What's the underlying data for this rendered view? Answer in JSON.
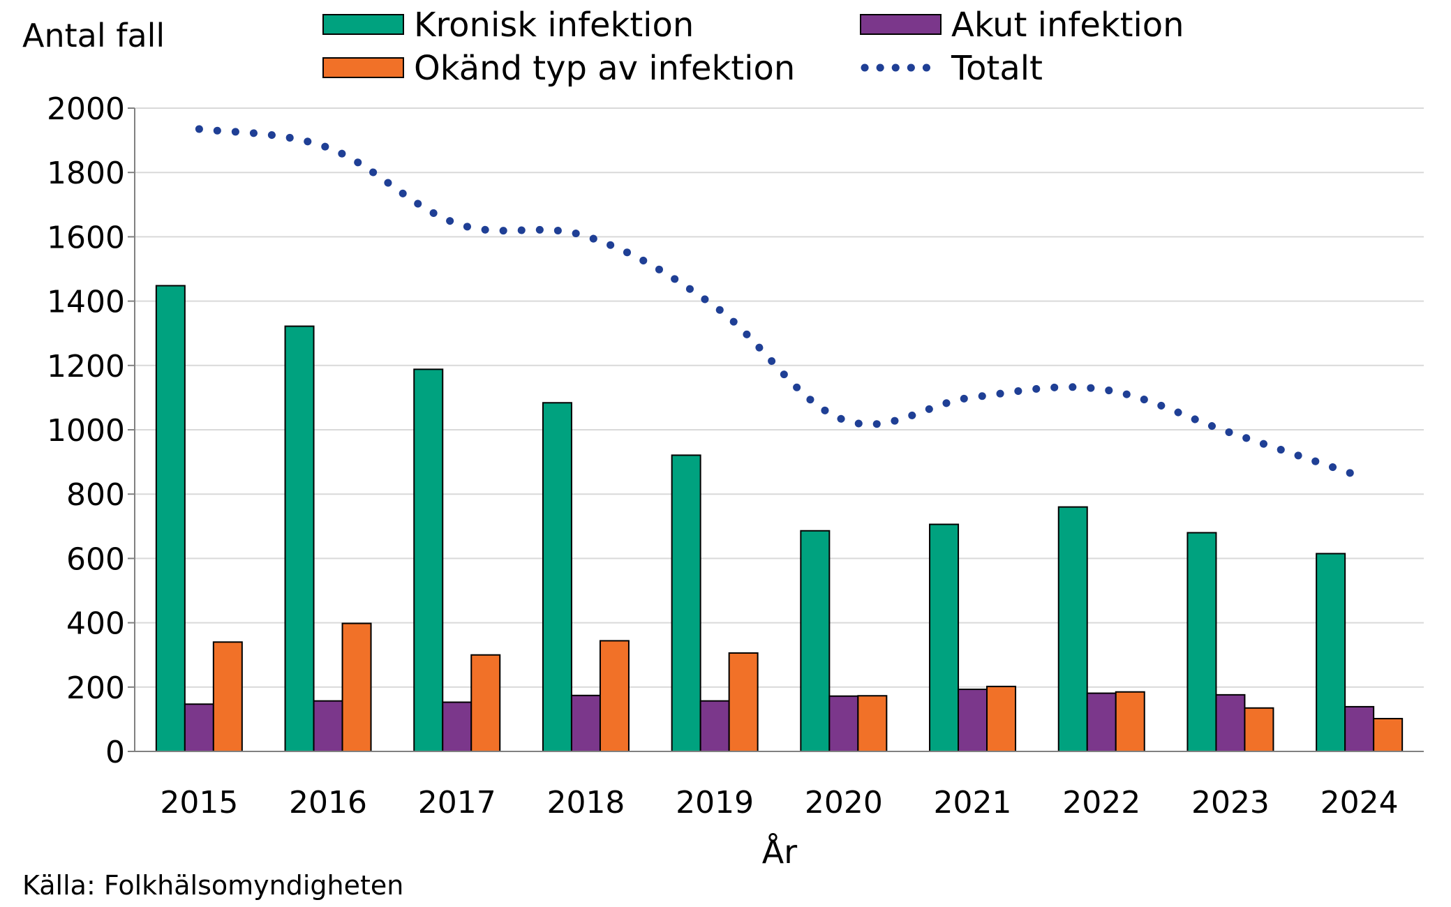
{
  "chart_data": {
    "type": "bar",
    "title": "",
    "ylabel": "Antal fall",
    "xlabel": "År",
    "source": "Källa: Folkhälsomyndigheten",
    "ylim": [
      0,
      2000
    ],
    "yticks": [
      0,
      200,
      400,
      600,
      800,
      1000,
      1200,
      1400,
      1600,
      1800,
      2000
    ],
    "grid": true,
    "legend_position": "top",
    "categories": [
      "2015",
      "2016",
      "2017",
      "2018",
      "2019",
      "2020",
      "2021",
      "2022",
      "2023",
      "2024"
    ],
    "series": [
      {
        "name": "Kronisk infektion",
        "kind": "bar",
        "color": "#00a27f",
        "values": [
          1448,
          1322,
          1188,
          1084,
          921,
          686,
          706,
          760,
          680,
          615
        ]
      },
      {
        "name": "Akut infektion",
        "kind": "bar",
        "color": "#7b378b",
        "values": [
          147,
          157,
          153,
          174,
          157,
          172,
          193,
          181,
          176,
          139
        ]
      },
      {
        "name": "Okänd typ av infektion",
        "kind": "bar",
        "color": "#f17128",
        "values": [
          340,
          398,
          300,
          344,
          306,
          173,
          202,
          185,
          135,
          102
        ]
      },
      {
        "name": "Totalt",
        "kind": "line",
        "color": "#1f3f95",
        "values": [
          1935,
          1877,
          1641,
          1602,
          1384,
          1031,
          1101,
          1126,
          991,
          856
        ]
      }
    ]
  }
}
